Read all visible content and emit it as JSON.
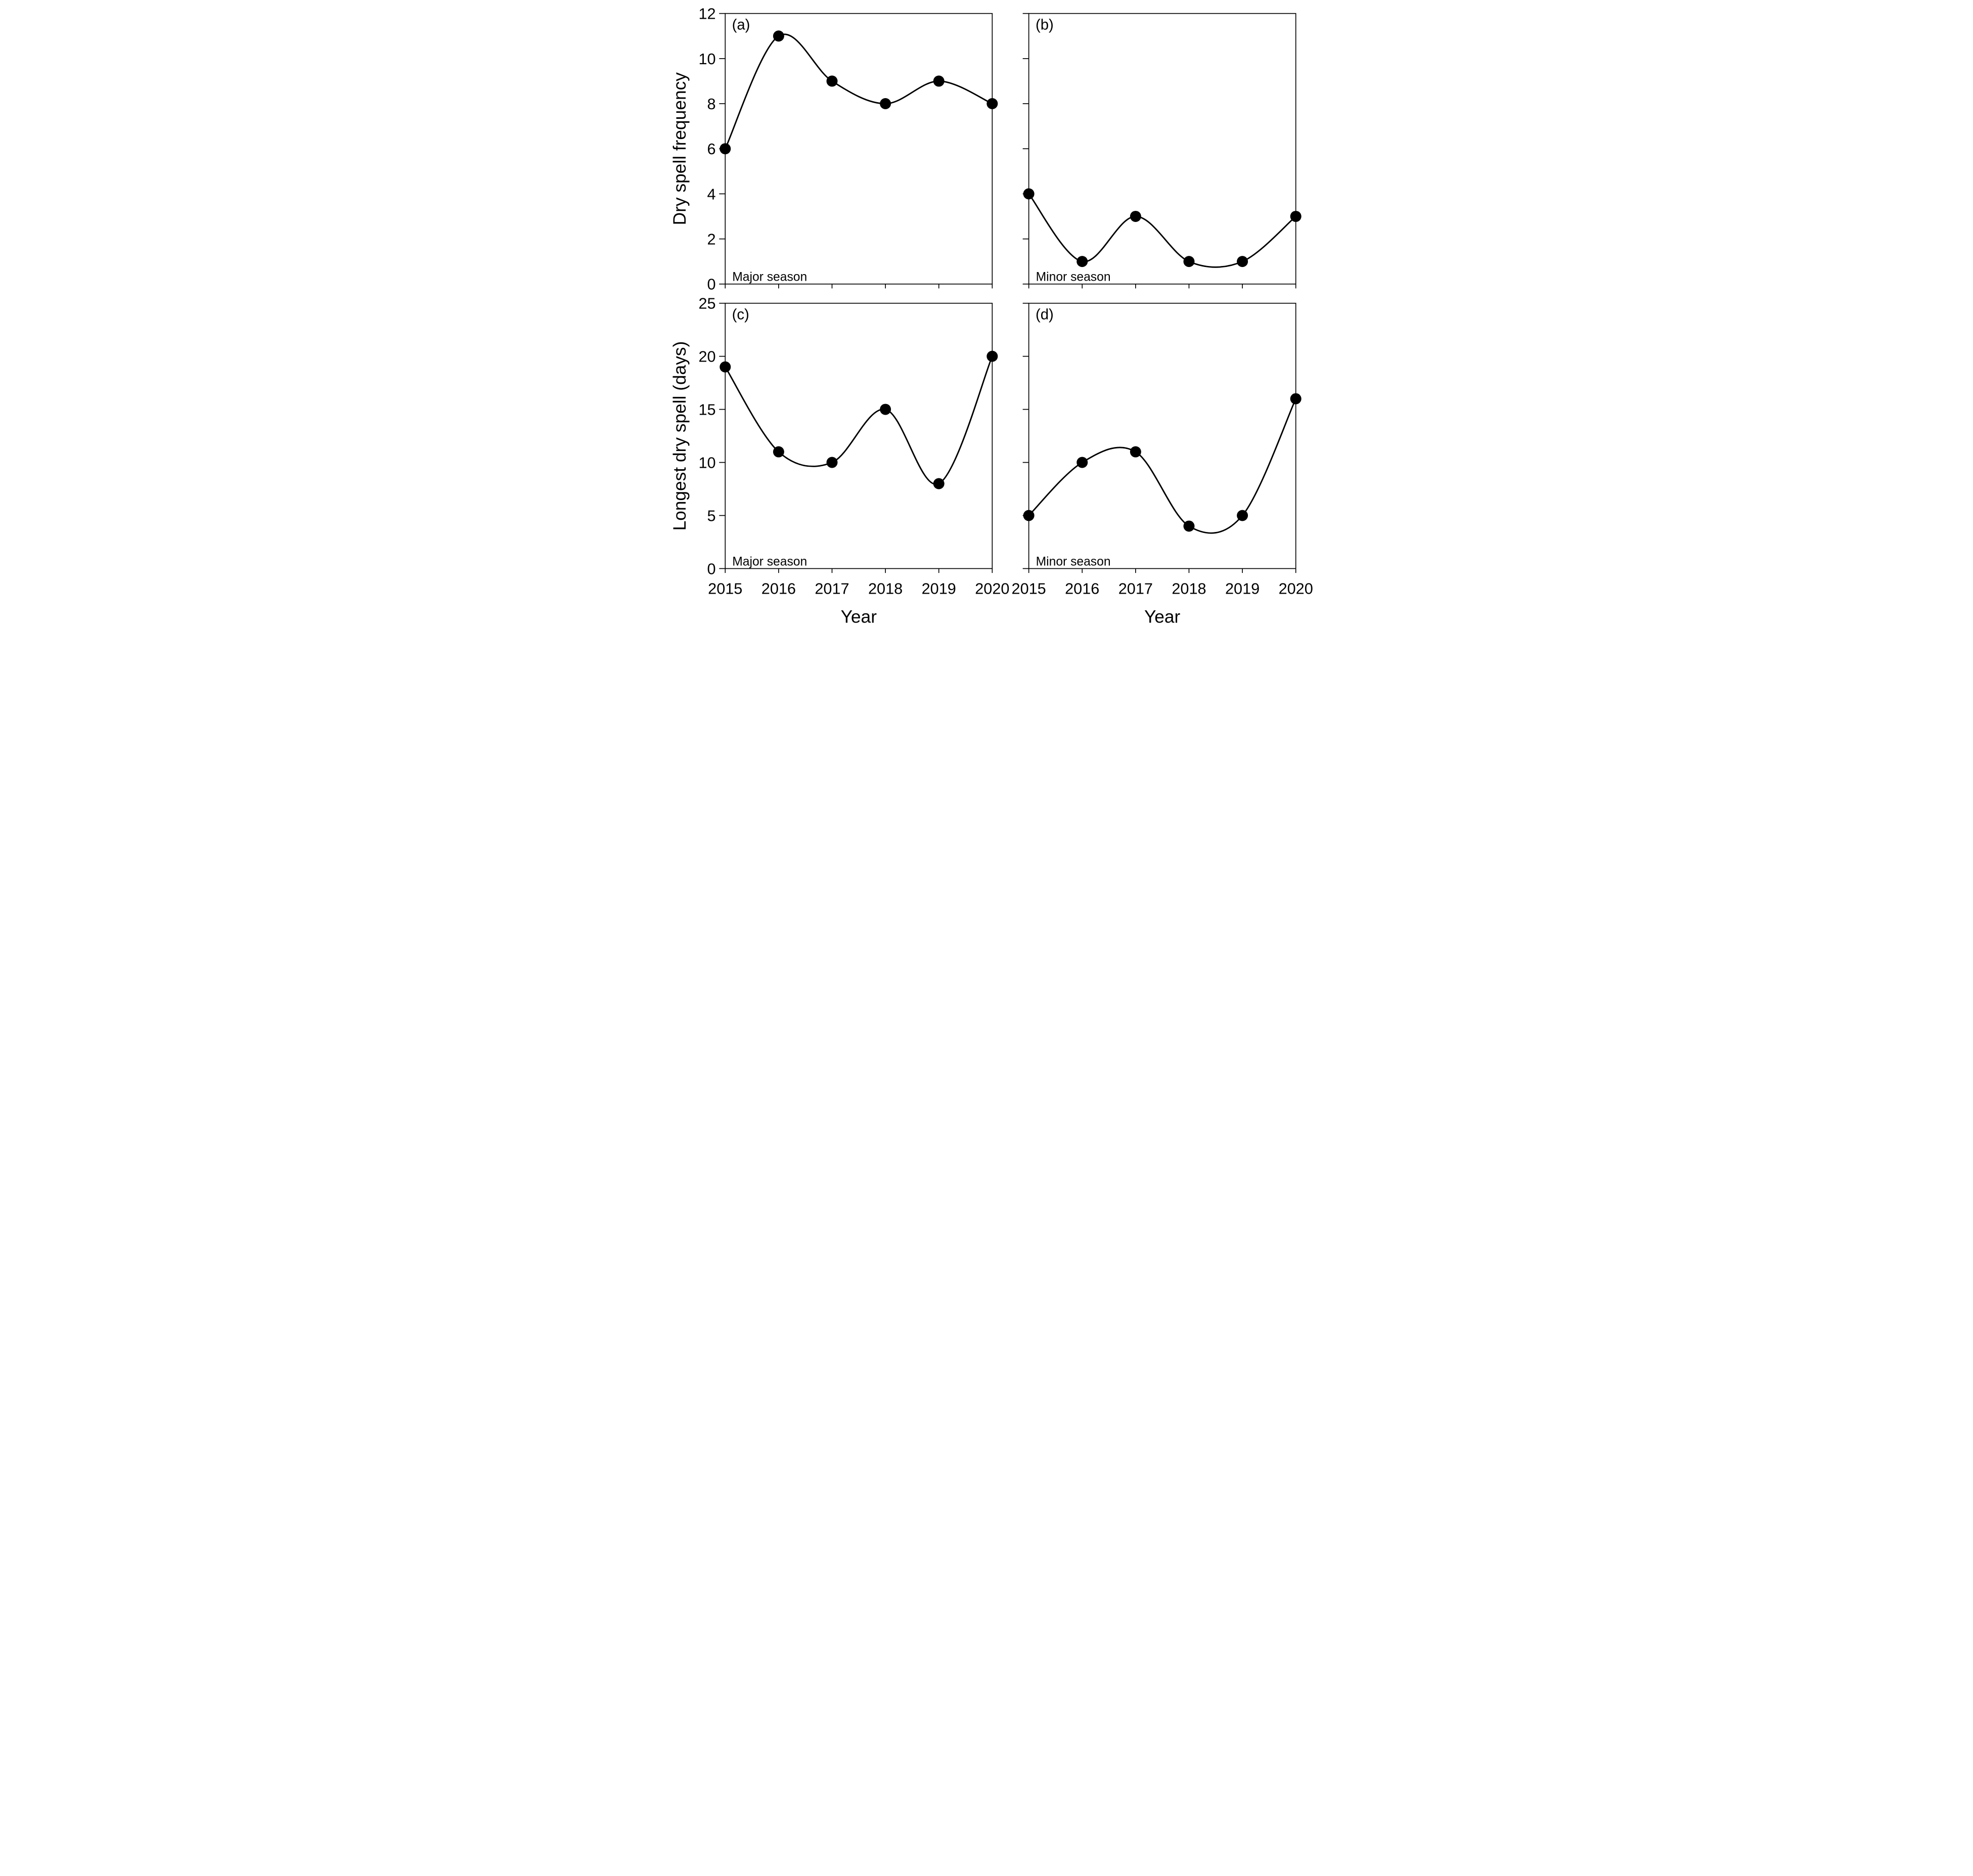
{
  "colors": {
    "foreground": "#000000",
    "background": "#ffffff"
  },
  "chart_data": [
    {
      "id": "a",
      "type": "line",
      "row": 0,
      "col": 0,
      "panel_label": "(a)",
      "annotation": "Major season",
      "x": [
        2015,
        2016,
        2017,
        2018,
        2019,
        2020
      ],
      "values": [
        6,
        11,
        9,
        8,
        9,
        8
      ],
      "xlabel": "Year",
      "ylabel": "Dry spell frequency",
      "xlim": [
        2015,
        2020
      ],
      "ylim": [
        0,
        12
      ],
      "yticks": [
        0,
        2,
        4,
        6,
        8,
        10,
        12
      ],
      "ytick_labels": [
        "0",
        "2",
        "4",
        "6",
        "8",
        "10",
        "12"
      ],
      "xticks": [
        2015,
        2016,
        2017,
        2018,
        2019,
        2020
      ],
      "xtick_labels": [
        "2015",
        "2016",
        "2017",
        "2018",
        "2019",
        "2020"
      ],
      "show_ytick_labels": true,
      "show_ylabel": true,
      "show_xtick_labels": false,
      "show_xlabel": false,
      "marker": "filled-circle",
      "line_style": "smooth-spline",
      "grid": false,
      "legend": "none"
    },
    {
      "id": "b",
      "type": "line",
      "row": 0,
      "col": 1,
      "panel_label": "(b)",
      "annotation": "Minor season",
      "x": [
        2015,
        2016,
        2017,
        2018,
        2019,
        2020
      ],
      "values": [
        4,
        1,
        3,
        1,
        1,
        3
      ],
      "xlabel": "Year",
      "ylabel": "Dry spell frequency",
      "xlim": [
        2015,
        2020
      ],
      "ylim": [
        0,
        12
      ],
      "yticks": [
        0,
        2,
        4,
        6,
        8,
        10,
        12
      ],
      "ytick_labels": [
        "0",
        "2",
        "4",
        "6",
        "8",
        "10",
        "12"
      ],
      "xticks": [
        2015,
        2016,
        2017,
        2018,
        2019,
        2020
      ],
      "xtick_labels": [
        "2015",
        "2016",
        "2017",
        "2018",
        "2019",
        "2020"
      ],
      "show_ytick_labels": false,
      "show_ylabel": false,
      "show_xtick_labels": false,
      "show_xlabel": false,
      "marker": "filled-circle",
      "line_style": "smooth-spline",
      "grid": false,
      "legend": "none"
    },
    {
      "id": "c",
      "type": "line",
      "row": 1,
      "col": 0,
      "panel_label": "(c)",
      "annotation": "Major season",
      "x": [
        2015,
        2016,
        2017,
        2018,
        2019,
        2020
      ],
      "values": [
        19,
        11,
        10,
        15,
        8,
        20
      ],
      "xlabel": "Year",
      "ylabel": "Longest dry spell (days)",
      "xlim": [
        2015,
        2020
      ],
      "ylim": [
        0,
        25
      ],
      "yticks": [
        0,
        5,
        10,
        15,
        20,
        25
      ],
      "ytick_labels": [
        "0",
        "5",
        "10",
        "15",
        "20",
        "25"
      ],
      "xticks": [
        2015,
        2016,
        2017,
        2018,
        2019,
        2020
      ],
      "xtick_labels": [
        "2015",
        "2016",
        "2017",
        "2018",
        "2019",
        "2020"
      ],
      "show_ytick_labels": true,
      "show_ylabel": true,
      "show_xtick_labels": true,
      "show_xlabel": true,
      "marker": "filled-circle",
      "line_style": "smooth-spline",
      "grid": false,
      "legend": "none"
    },
    {
      "id": "d",
      "type": "line",
      "row": 1,
      "col": 1,
      "panel_label": "(d)",
      "annotation": "Minor season",
      "x": [
        2015,
        2016,
        2017,
        2018,
        2019,
        2020
      ],
      "values": [
        5,
        10,
        11,
        4,
        5,
        16
      ],
      "xlabel": "Year",
      "ylabel": "Longest dry spell (days)",
      "xlim": [
        2015,
        2020
      ],
      "ylim": [
        0,
        25
      ],
      "yticks": [
        0,
        5,
        10,
        15,
        20,
        25
      ],
      "ytick_labels": [
        "0",
        "5",
        "10",
        "15",
        "20",
        "25"
      ],
      "xticks": [
        2015,
        2016,
        2017,
        2018,
        2019,
        2020
      ],
      "xtick_labels": [
        "2015",
        "2016",
        "2017",
        "2018",
        "2019",
        "2020"
      ],
      "show_ytick_labels": false,
      "show_ylabel": false,
      "show_xtick_labels": true,
      "show_xlabel": true,
      "marker": "filled-circle",
      "line_style": "smooth-spline",
      "grid": false,
      "legend": "none"
    }
  ]
}
